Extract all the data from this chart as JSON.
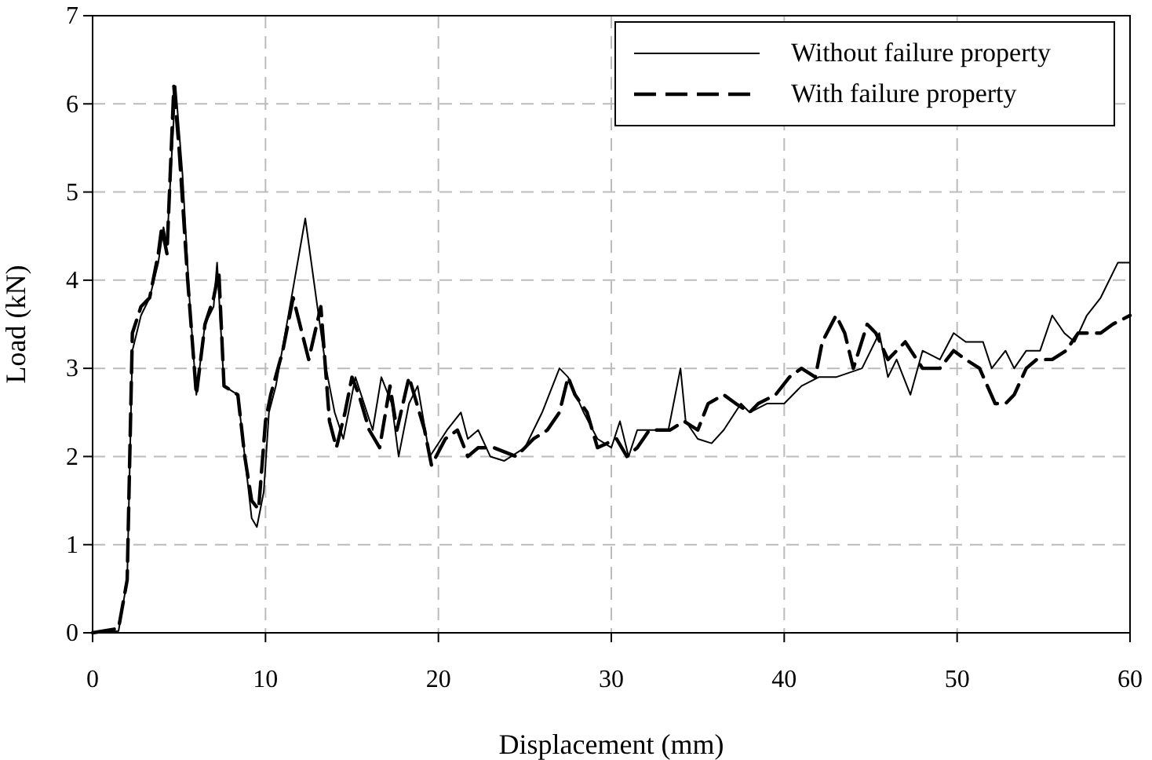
{
  "chart_data": {
    "type": "line",
    "xlabel": "Displacement (mm)",
    "ylabel": "Load (kN)",
    "xlim": [
      0,
      60
    ],
    "xticks": [
      0,
      10,
      20,
      30,
      40,
      50,
      60
    ],
    "ylim": [
      0,
      7
    ],
    "yticks": [
      0,
      1,
      2,
      3,
      4,
      5,
      6,
      7
    ],
    "grid": true,
    "legend": "top right",
    "marker": "none",
    "series": [
      {
        "name": "Without failure property",
        "color": "#000000",
        "line_style": "solid",
        "x": [
          0,
          1.5,
          2,
          2.3,
          2.8,
          3.3,
          3.8,
          4.1,
          4.3,
          4.6,
          4.8,
          5.2,
          5.6,
          6,
          6.5,
          7,
          7.2,
          7.6,
          8.4,
          8.8,
          9.2,
          9.5,
          9.9,
          10.2,
          10.6,
          11.5,
          12.3,
          13,
          13.5,
          14,
          14.5,
          15.2,
          15.7,
          16.2,
          16.7,
          17.3,
          17.7,
          18.3,
          18.8,
          19.5,
          20.5,
          21.3,
          21.7,
          22.3,
          23,
          23.8,
          25,
          26,
          27,
          27.5,
          28.4,
          29.2,
          30,
          30.5,
          31,
          31.5,
          32.5,
          33.3,
          34,
          34.3,
          35,
          35.8,
          36.5,
          37.5,
          38,
          39,
          40,
          41,
          42,
          43,
          44.5,
          45.5,
          46,
          46.5,
          47.3,
          48,
          49,
          49.8,
          50.5,
          51.5,
          52,
          52.8,
          53.3,
          54,
          54.8,
          55.5,
          56.2,
          56.8,
          57.5,
          58.3,
          59.3,
          60
        ],
        "values": [
          0,
          0.02,
          0.6,
          3.2,
          3.6,
          3.8,
          4.2,
          4.6,
          4.4,
          5.5,
          6.2,
          5.2,
          3.8,
          2.7,
          3.5,
          3.7,
          4.2,
          2.8,
          2.7,
          2.0,
          1.3,
          1.2,
          1.6,
          2.5,
          2.8,
          3.8,
          4.7,
          3.7,
          3.0,
          2.5,
          2.2,
          2.9,
          2.6,
          2.3,
          2.9,
          2.6,
          2.0,
          2.6,
          2.8,
          2.0,
          2.3,
          2.5,
          2.2,
          2.3,
          2.0,
          1.95,
          2.1,
          2.5,
          3.0,
          2.9,
          2.5,
          2.2,
          2.1,
          2.4,
          2.0,
          2.3,
          2.3,
          2.3,
          3.0,
          2.4,
          2.2,
          2.15,
          2.3,
          2.6,
          2.5,
          2.6,
          2.6,
          2.8,
          2.9,
          2.9,
          3.0,
          3.4,
          2.9,
          3.1,
          2.7,
          3.2,
          3.1,
          3.4,
          3.3,
          3.3,
          3.0,
          3.2,
          3.0,
          3.2,
          3.2,
          3.6,
          3.4,
          3.3,
          3.6,
          3.8,
          4.2,
          4.2
        ]
      },
      {
        "name": "With failure property",
        "color": "#000000",
        "line_style": "dashed",
        "x": [
          0,
          1.5,
          2,
          2.3,
          2.8,
          3.3,
          3.8,
          4,
          4.3,
          4.7,
          5,
          5.5,
          6,
          6.5,
          7,
          7.3,
          7.6,
          8.4,
          8.8,
          9.2,
          9.6,
          10,
          10.3,
          11,
          11.6,
          12.5,
          13.2,
          13.7,
          14.1,
          14.6,
          15,
          15.4,
          16,
          16.6,
          17.2,
          17.6,
          18.3,
          19.2,
          19.6,
          20.4,
          21.1,
          21.7,
          22.3,
          23.2,
          24.5,
          25.5,
          26.3,
          27,
          27.5,
          27.9,
          28.6,
          29.2,
          30.3,
          30.9,
          31.5,
          32.2,
          33.4,
          34.2,
          35,
          35.6,
          36.5,
          37.2,
          38,
          38.5,
          39.5,
          40.3,
          41,
          41.8,
          42.2,
          43,
          43.5,
          44,
          44.8,
          45.3,
          46,
          47,
          48,
          49,
          49.8,
          50.5,
          51.3,
          52.2,
          52.8,
          53.3,
          54,
          54.6,
          55.5,
          56.3,
          57,
          58.3,
          59,
          60
        ],
        "values": [
          0,
          0.05,
          0.6,
          3.4,
          3.7,
          3.8,
          4.3,
          4.6,
          4.3,
          6.2,
          5.5,
          4.0,
          2.7,
          3.5,
          3.8,
          4.1,
          2.8,
          2.7,
          2.0,
          1.5,
          1.4,
          2.4,
          2.7,
          3.2,
          3.8,
          3.1,
          3.7,
          2.4,
          2.1,
          2.5,
          2.9,
          2.7,
          2.3,
          2.1,
          2.8,
          2.3,
          2.9,
          2.3,
          1.9,
          2.2,
          2.3,
          2.0,
          2.1,
          2.1,
          2.0,
          2.2,
          2.3,
          2.5,
          2.9,
          2.7,
          2.5,
          2.1,
          2.2,
          2.0,
          2.1,
          2.3,
          2.3,
          2.4,
          2.3,
          2.6,
          2.7,
          2.6,
          2.5,
          2.6,
          2.7,
          2.9,
          3.0,
          2.9,
          3.3,
          3.6,
          3.4,
          3.0,
          3.5,
          3.4,
          3.1,
          3.3,
          3.0,
          3.0,
          3.2,
          3.1,
          3.0,
          2.6,
          2.6,
          2.7,
          3.0,
          3.1,
          3.1,
          3.2,
          3.4,
          3.4,
          3.5,
          3.6
        ]
      }
    ]
  }
}
